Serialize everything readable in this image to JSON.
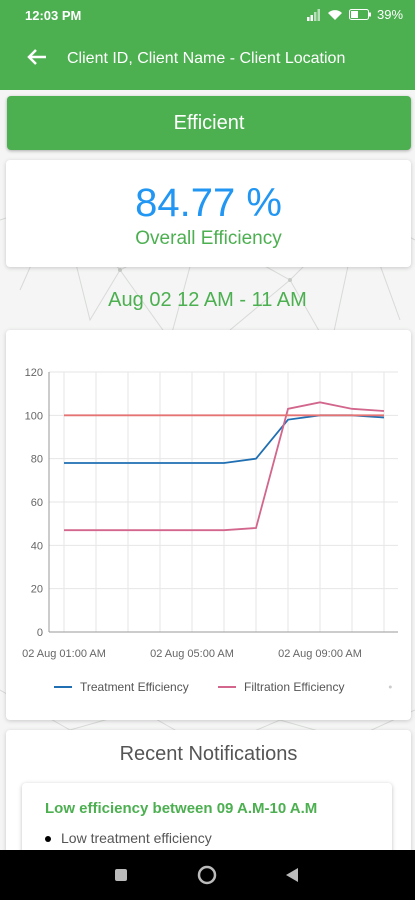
{
  "status_bar": {
    "time": "12:03 PM",
    "battery": "39"
  },
  "header": {
    "title": "Client ID, Client Name - Client Location",
    "back_icon": "arrow-left-icon"
  },
  "status": {
    "label": "Efficient",
    "color": "#4caf50"
  },
  "efficiency": {
    "value": "84.77 %",
    "label": "Overall Efficiency"
  },
  "date_range": "Aug 02 12 AM - 11 AM",
  "chart_data": {
    "type": "line",
    "x_ticks": [
      "02 Aug 01:00 AM",
      "02 Aug 05:00 AM",
      "02 Aug 09:00 AM"
    ],
    "x": [
      "01:00",
      "02:00",
      "03:00",
      "04:00",
      "05:00",
      "06:00",
      "07:00",
      "08:00",
      "09:00",
      "10:00",
      "11:00"
    ],
    "ylim": [
      0,
      120
    ],
    "y_ticks": [
      0,
      20,
      40,
      60,
      80,
      100,
      120
    ],
    "grid": true,
    "legend_position": "bottom",
    "series": [
      {
        "name": "Treatment Efficiency",
        "color": "#1f6fb2",
        "values": [
          78,
          78,
          78,
          78,
          78,
          78,
          80,
          98,
          100,
          100,
          99
        ]
      },
      {
        "name": "Filtration Efficiency",
        "color": "#d2668c",
        "values": [
          47,
          47,
          47,
          47,
          47,
          47,
          48,
          103,
          106,
          103,
          102
        ]
      },
      {
        "name": "",
        "color": "#e57373",
        "values": [
          100,
          100,
          100,
          100,
          100,
          100,
          100,
          100,
          100,
          100,
          100
        ]
      }
    ]
  },
  "notifications": {
    "title": "Recent Notifications",
    "items": [
      {
        "heading": "Low efficiency between 09 A.M-10 A.M",
        "bullets": [
          "Low treatment efficiency"
        ]
      }
    ]
  },
  "nav": {
    "recents": "square-icon",
    "home": "circle-icon",
    "back": "triangle-back-icon"
  }
}
